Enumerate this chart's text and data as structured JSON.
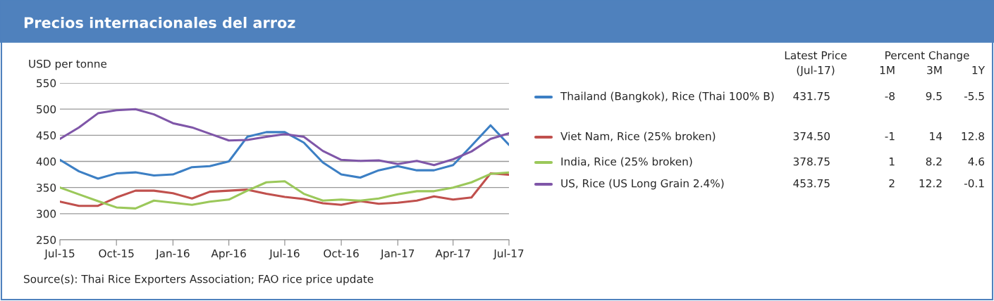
{
  "chart_data": {
    "type": "line",
    "title": "Precios internacionales del arroz",
    "ylabel": "USD per tonne",
    "x": [
      "2015-07",
      "2015-08",
      "2015-09",
      "2015-10",
      "2015-11",
      "2015-12",
      "2016-01",
      "2016-02",
      "2016-03",
      "2016-04",
      "2016-05",
      "2016-06",
      "2016-07",
      "2016-08",
      "2016-09",
      "2016-10",
      "2016-11",
      "2016-12",
      "2017-01",
      "2017-02",
      "2017-03",
      "2017-04",
      "2017-05",
      "2017-06",
      "2017-07"
    ],
    "series": [
      {
        "name": "Thailand (Bangkok), Rice (Thai 100% B)",
        "color": "#3c7fc4",
        "values": [
          403,
          381,
          367,
          377,
          379,
          373,
          375,
          389,
          391,
          400,
          447,
          456,
          456,
          436,
          398,
          375,
          369,
          383,
          391,
          383,
          383,
          393,
          430,
          469,
          431.75
        ]
      },
      {
        "name": "Viet Nam, Rice (25% broken)",
        "color": "#c0504d",
        "values": [
          323,
          315,
          315,
          331,
          344,
          344,
          339,
          329,
          342,
          344,
          346,
          338,
          332,
          328,
          320,
          317,
          324,
          319,
          321,
          325,
          333,
          327,
          331,
          377,
          374.5
        ]
      },
      {
        "name": "India, Rice (25% broken)",
        "color": "#9bc85a",
        "values": [
          350,
          337,
          324,
          312,
          310,
          325,
          321,
          317,
          323,
          327,
          344,
          360,
          362,
          338,
          325,
          327,
          325,
          329,
          337,
          343,
          343,
          350,
          360,
          376,
          378.75
        ]
      },
      {
        "name": "US, Rice (US Long Grain 2.4%)",
        "color": "#7f56a8",
        "values": [
          443,
          465,
          492,
          498,
          500,
          490,
          473,
          465,
          453,
          440,
          441,
          447,
          452,
          447,
          420,
          403,
          401,
          402,
          395,
          401,
          393,
          404,
          419,
          443,
          453.75
        ]
      }
    ],
    "xlim": [
      "2015-07",
      "2017-07"
    ],
    "xticks": [
      {
        "value": "2015-07",
        "label": "Jul-15"
      },
      {
        "value": "2015-10",
        "label": "Oct-15"
      },
      {
        "value": "2016-01",
        "label": "Jan-16"
      },
      {
        "value": "2016-04",
        "label": "Apr-16"
      },
      {
        "value": "2016-07",
        "label": "Jul-16"
      },
      {
        "value": "2016-10",
        "label": "Oct-16"
      },
      {
        "value": "2017-01",
        "label": "Jan-17"
      },
      {
        "value": "2017-04",
        "label": "Apr-17"
      },
      {
        "value": "2017-07",
        "label": "Jul-17"
      }
    ],
    "ylim": [
      250,
      550
    ],
    "yticks": [
      250,
      300,
      350,
      400,
      450,
      500,
      550
    ],
    "grid": "y",
    "legend": "right",
    "marker": "none",
    "line_style": "solid",
    "annotations": [
      "Latest Price",
      "(Jul-17)",
      "Percent Change",
      "1M",
      "3M",
      "1Y",
      "431.75",
      "-8",
      "9.5",
      "-5.5",
      "374.50",
      "-1",
      "14",
      "12.8",
      "378.75",
      "1",
      "8.2",
      "4.6",
      "453.75",
      "2",
      "12.2",
      "-0.1",
      "Source(s): Thai Rice Exporters Association; FAO rice price update"
    ]
  }
}
